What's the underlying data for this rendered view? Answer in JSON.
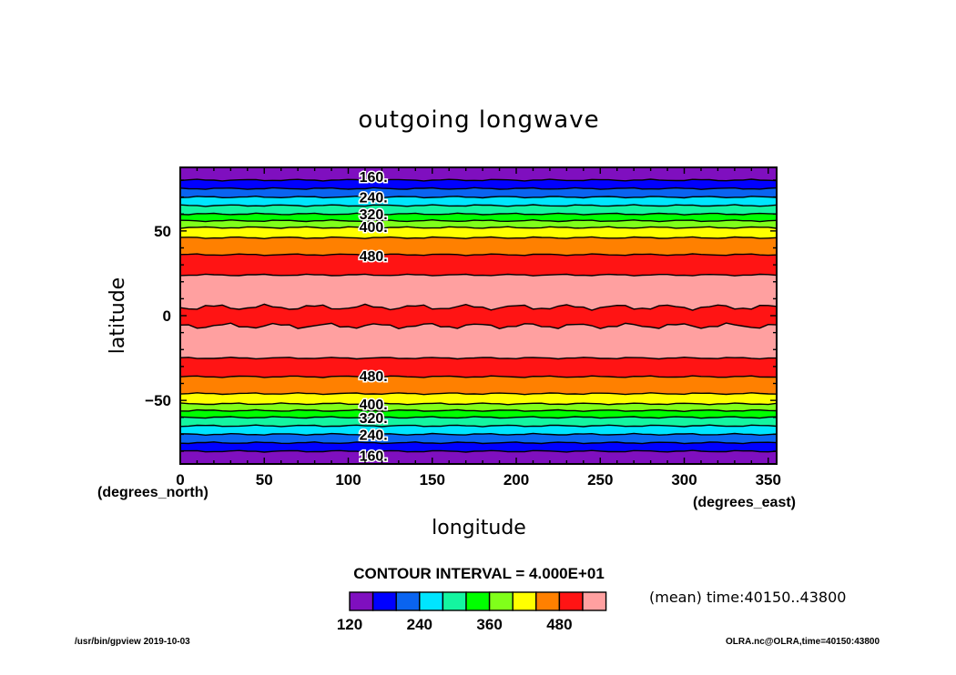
{
  "chart_data": {
    "type": "heatmap",
    "title": "outgoing longwave",
    "xlabel": "longitude",
    "ylabel": "latitude",
    "x_units": "(degrees_east)",
    "y_units": "(degrees_north)",
    "xlim": [
      0,
      355
    ],
    "ylim": [
      -87.5,
      87.5
    ],
    "x_ticks": [
      0,
      50,
      100,
      150,
      200,
      250,
      300,
      350
    ],
    "x_tick_labels": [
      "0",
      "50",
      "100",
      "150",
      "200",
      "250",
      "300",
      "350"
    ],
    "y_ticks": [
      50,
      0,
      -50
    ],
    "y_tick_labels": [
      "50",
      "0",
      "−50"
    ],
    "contour_interval_text": "CONTOUR INTERVAL = 4.000E+01",
    "annotation": "(mean) time:40150..43800",
    "bands": [
      {
        "lat": [
          80,
          87.5
        ],
        "color": "#7f0fbf"
      },
      {
        "lat": [
          75,
          80
        ],
        "color": "#0000ff"
      },
      {
        "lat": [
          70,
          75
        ],
        "color": "#0a64f0"
      },
      {
        "lat": [
          65,
          70
        ],
        "color": "#00e5ff"
      },
      {
        "lat": [
          60,
          65
        ],
        "color": "#14f5a0"
      },
      {
        "lat": [
          56,
          60
        ],
        "color": "#00ff00"
      },
      {
        "lat": [
          52,
          56
        ],
        "color": "#80ff1a"
      },
      {
        "lat": [
          46,
          52
        ],
        "color": "#ffff00"
      },
      {
        "lat": [
          36,
          46
        ],
        "color": "#ff8000"
      },
      {
        "lat": [
          24,
          36
        ],
        "color": "#ff1414"
      },
      {
        "lat": [
          5,
          24
        ],
        "color": "#ffa0a0"
      },
      {
        "lat": [
          -6,
          5
        ],
        "color": "#ff1414"
      },
      {
        "lat": [
          -25,
          -6
        ],
        "color": "#ffa0a0"
      },
      {
        "lat": [
          -36,
          -25
        ],
        "color": "#ff1414"
      },
      {
        "lat": [
          -46,
          -36
        ],
        "color": "#ff8000"
      },
      {
        "lat": [
          -52,
          -46
        ],
        "color": "#ffff00"
      },
      {
        "lat": [
          -56,
          -52
        ],
        "color": "#80ff1a"
      },
      {
        "lat": [
          -60,
          -56
        ],
        "color": "#00ff00"
      },
      {
        "lat": [
          -65,
          -60
        ],
        "color": "#14f5a0"
      },
      {
        "lat": [
          -70,
          -65
        ],
        "color": "#00e5ff"
      },
      {
        "lat": [
          -75,
          -70
        ],
        "color": "#0a64f0"
      },
      {
        "lat": [
          -80,
          -75
        ],
        "color": "#0000ff"
      },
      {
        "lat": [
          -87.5,
          -80
        ],
        "color": "#7f0fbf"
      }
    ],
    "contour_lines": [
      80,
      75,
      70,
      65,
      60,
      56,
      52,
      46,
      36,
      24,
      5,
      -6,
      -25,
      -36,
      -46,
      -52,
      -56,
      -60,
      -65,
      -70,
      -75,
      -80
    ],
    "contour_labels": [
      {
        "text": "160.",
        "lat": 82,
        "lon": 115
      },
      {
        "text": "240.",
        "lat": 70,
        "lon": 115
      },
      {
        "text": "320.",
        "lat": 60,
        "lon": 115
      },
      {
        "text": "400.",
        "lat": 52.5,
        "lon": 115
      },
      {
        "text": "480.",
        "lat": 35.5,
        "lon": 115
      },
      {
        "text": "480.",
        "lat": -35.5,
        "lon": 115
      },
      {
        "text": "400.",
        "lat": -52,
        "lon": 115
      },
      {
        "text": "320.",
        "lat": -60,
        "lon": 115
      },
      {
        "text": "240.",
        "lat": -70,
        "lon": 115
      },
      {
        "text": "160.",
        "lat": -82.5,
        "lon": 115
      }
    ],
    "colorbar": {
      "colors": [
        "#7f0fbf",
        "#0000ff",
        "#0a64f0",
        "#00e5ff",
        "#14f5a0",
        "#00ff00",
        "#80ff1a",
        "#ffff00",
        "#ff8000",
        "#ff1414",
        "#ffa0a0"
      ],
      "tick_labels": [
        {
          "text": "120",
          "index": 0
        },
        {
          "text": "240",
          "index": 3
        },
        {
          "text": "360",
          "index": 6
        },
        {
          "text": "480",
          "index": 9
        }
      ]
    }
  },
  "footer": {
    "left": "/usr/bin/gpview   2019-10-03",
    "right": "OLRA.nc@OLRA,time=40150:43800"
  }
}
